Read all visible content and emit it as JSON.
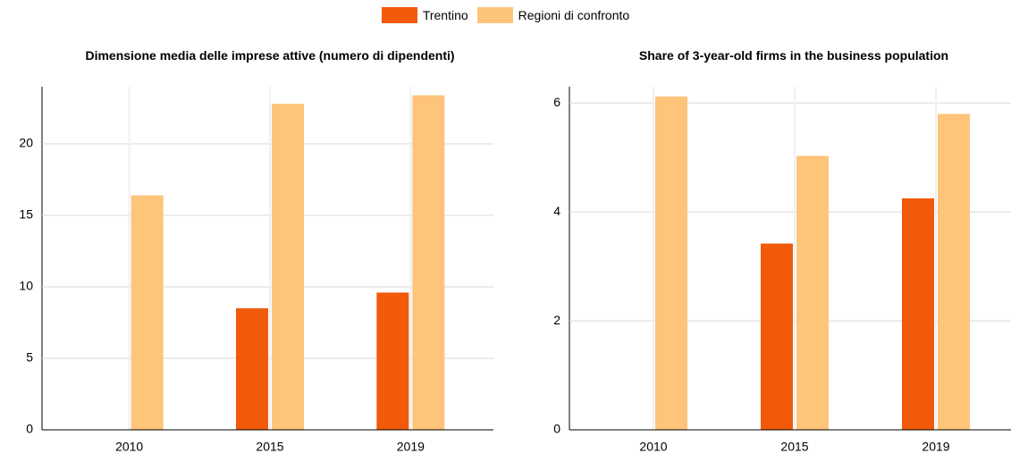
{
  "chart_data": [
    {
      "type": "bar",
      "title": "Dimensione media delle imprese attive (numero di dipendenti)",
      "categories": [
        "2010",
        "2015",
        "2019"
      ],
      "series": [
        {
          "name": "Trentino",
          "color": "#f05a0a",
          "values": [
            null,
            8.5,
            9.6
          ]
        },
        {
          "name": "Regioni di confronto",
          "color": "#fdc47a",
          "values": [
            16.4,
            22.8,
            23.4
          ]
        }
      ],
      "ylim": [
        0,
        24
      ],
      "yticks": [
        0,
        5,
        10,
        15,
        20
      ],
      "grid": true
    },
    {
      "type": "bar",
      "title": "Share of 3-year-old firms in the business population",
      "categories": [
        "2010",
        "2015",
        "2019"
      ],
      "series": [
        {
          "color": "#f05a0a",
          "values": [
            null,
            3.42,
            4.25
          ]
        },
        {
          "color": "#fdc47a",
          "values": [
            6.12,
            5.03,
            5.8
          ]
        }
      ],
      "ylim": [
        0,
        6.3
      ],
      "yticks": [
        0,
        2,
        4,
        6
      ],
      "grid": true
    }
  ]
}
